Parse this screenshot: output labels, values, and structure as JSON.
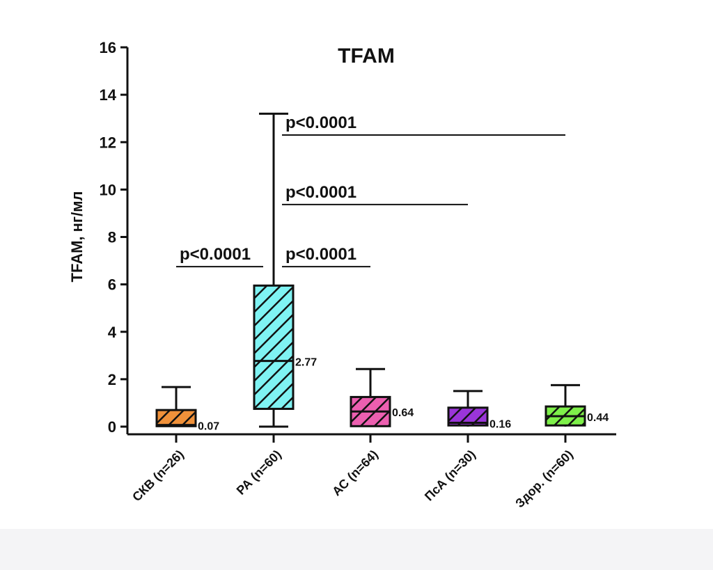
{
  "chart_data": {
    "type": "box",
    "title": "TFAM",
    "xlabel": "",
    "ylabel": "TFAM, нг/мл",
    "ylim": [
      0,
      16
    ],
    "yticks": [
      0,
      2,
      4,
      6,
      8,
      10,
      12,
      14,
      16
    ],
    "grid": false,
    "categories": [
      "СКВ (n=26)",
      "РА (n=60)",
      "АС (n=64)",
      "ПсА (n=30)",
      "Здор. (n=60)"
    ],
    "boxes": [
      {
        "min": 0,
        "q1": 0.02,
        "median": 0.07,
        "q3": 0.7,
        "max": 1.67,
        "median_label": "0.07",
        "color": "#f0913a"
      },
      {
        "min": 0,
        "q1": 0.75,
        "median": 2.77,
        "q3": 5.95,
        "max": 13.2,
        "median_label": "2.77",
        "color": "#7ff3f3"
      },
      {
        "min": 0,
        "q1": 0.02,
        "median": 0.64,
        "q3": 1.25,
        "max": 2.43,
        "median_label": "0.64",
        "color": "#ec5fb0"
      },
      {
        "min": 0,
        "q1": 0.05,
        "median": 0.16,
        "q3": 0.8,
        "max": 1.5,
        "median_label": "0.16",
        "color": "#9a35d8"
      },
      {
        "min": 0,
        "q1": 0.05,
        "median": 0.44,
        "q3": 0.85,
        "max": 1.75,
        "median_label": "0.44",
        "color": "#7ef04a"
      }
    ],
    "annotations": [
      {
        "label": "p<0.0001",
        "from": 0,
        "to": 1,
        "y": 6.75
      },
      {
        "label": "p<0.0001",
        "from": 1,
        "to": 2,
        "y": 6.75
      },
      {
        "label": "p<0.0001",
        "from": 1,
        "to": 3,
        "y": 9.37
      },
      {
        "label": "p<0.0001",
        "from": 1,
        "to": 4,
        "y": 12.3
      }
    ]
  }
}
